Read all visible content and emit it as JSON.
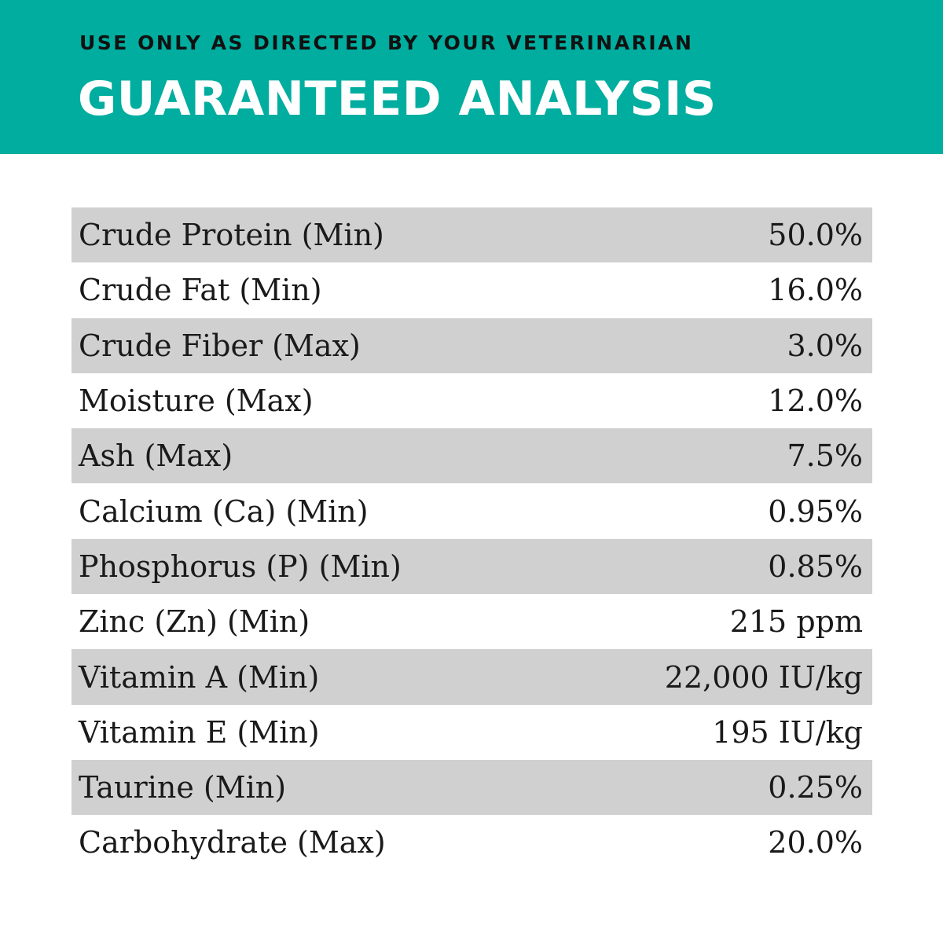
{
  "header": {
    "subtitle": "USE ONLY AS DIRECTED BY YOUR VETERINARIAN",
    "title": "GUARANTEED ANALYSIS",
    "background_color": "#00ad9f"
  },
  "analysis": [
    {
      "name": "Crude Protein (Min)",
      "value": "50.0%"
    },
    {
      "name": "Crude Fat (Min)",
      "value": "16.0%"
    },
    {
      "name": "Crude Fiber (Max)",
      "value": "3.0%"
    },
    {
      "name": "Moisture (Max)",
      "value": "12.0%"
    },
    {
      "name": "Ash (Max)",
      "value": "7.5%"
    },
    {
      "name": "Calcium (Ca) (Min)",
      "value": "0.95%"
    },
    {
      "name": "Phosphorus (P) (Min)",
      "value": "0.85%"
    },
    {
      "name": "Zinc (Zn) (Min)",
      "value": "215 ppm"
    },
    {
      "name": "Vitamin A (Min)",
      "value": "22,000 IU/kg"
    },
    {
      "name": "Vitamin E (Min)",
      "value": "195 IU/kg"
    },
    {
      "name": "Taurine (Min)",
      "value": "0.25%"
    },
    {
      "name": "Carbohydrate (Max)",
      "value": "20.0%"
    }
  ]
}
